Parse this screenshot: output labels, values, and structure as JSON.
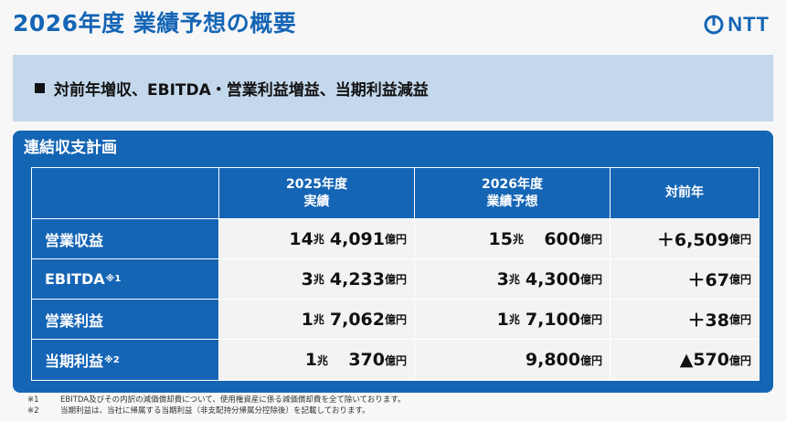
{
  "title": "2026年度 業績予想の概要",
  "logo": {
    "text": "NTT"
  },
  "summary": {
    "text": "対前年増収、EBITDA・営業利益増益、当期利益減益"
  },
  "table": {
    "title": "連結収支計画",
    "headers": [
      {
        "line1": "",
        "line2": ""
      },
      {
        "line1": "2025年度",
        "line2": "実績"
      },
      {
        "line1": "2026年度",
        "line2": "業績予想"
      },
      {
        "line1": "対前年",
        "line2": ""
      }
    ],
    "rows": [
      {
        "label": "営業収益",
        "note": "",
        "fy2025": {
          "cho": "14",
          "oku": "4,091"
        },
        "fy2026": {
          "cho": "15",
          "oku": "600"
        },
        "yoy": "＋6,509"
      },
      {
        "label": "EBITDA",
        "note": "※1",
        "fy2025": {
          "cho": "3",
          "oku": "4,233"
        },
        "fy2026": {
          "cho": "3",
          "oku": "4,300"
        },
        "yoy": "＋67"
      },
      {
        "label": "営業利益",
        "note": "",
        "fy2025": {
          "cho": "1",
          "oku": "7,062"
        },
        "fy2026": {
          "cho": "1",
          "oku": "7,100"
        },
        "yoy": "＋38"
      },
      {
        "label": "当期利益",
        "note": "※2",
        "fy2025": {
          "cho": "1",
          "oku": "370"
        },
        "fy2026": {
          "cho": "",
          "oku": "9,800"
        },
        "yoy": "▲570"
      }
    ],
    "unit_cho": "兆",
    "unit_oku": "億円"
  },
  "notes": [
    {
      "mark": "※1",
      "text": "EBITDA及びその内訳の減価償却費について、使用権資産に係る減価償却費を全て除いております。"
    },
    {
      "mark": "※2",
      "text": "当期利益は、当社に帰属する当期利益（非支配持分帰属分控除後）を記載しております。"
    }
  ],
  "colors": {
    "accent": "#1565b5",
    "summary_bg": "#c4d8ec"
  }
}
